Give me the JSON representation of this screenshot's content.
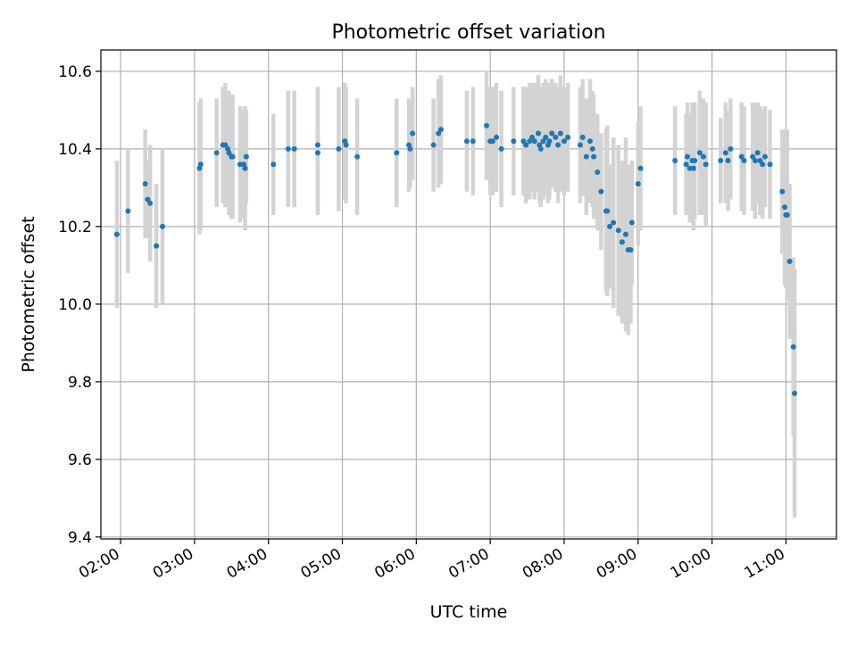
{
  "chart_data": {
    "type": "scatter",
    "title": "Photometric offset variation",
    "xlabel": "UTC time",
    "ylabel": "Photometric offset",
    "xlim": [
      "01:44",
      "11:41"
    ],
    "ylim": [
      9.395,
      10.655
    ],
    "grid": true,
    "x_ticks": [
      "02:00",
      "03:00",
      "04:00",
      "05:00",
      "06:00",
      "07:00",
      "08:00",
      "09:00",
      "10:00",
      "11:00"
    ],
    "y_ticks": [
      9.4,
      9.6,
      9.8,
      10.0,
      10.2,
      10.4,
      10.6
    ],
    "y_tick_labels": [
      "9.4",
      "9.6",
      "9.8",
      "10.0",
      "10.2",
      "10.4",
      "10.6"
    ],
    "colors": {
      "point": "#1f77b4",
      "errorbar": "#d3d3d3",
      "grid": "#b0b0b0"
    },
    "series": [
      {
        "x": [
          "01:57",
          "02:06",
          "02:20",
          "02:22",
          "02:24",
          "02:29",
          "02:34",
          "03:04",
          "03:05",
          "03:18",
          "03:23",
          "03:25",
          "03:27",
          "03:28",
          "03:30",
          "03:31",
          "03:37",
          "03:40",
          "03:41",
          "03:42",
          "04:04",
          "04:16",
          "04:21",
          "04:40",
          "04:40",
          "04:57",
          "05:02",
          "05:03",
          "05:12",
          "05:44",
          "05:54",
          "05:55",
          "05:57",
          "06:14",
          "06:18",
          "06:20",
          "06:41",
          "06:46",
          "06:57",
          "07:00",
          "07:02",
          "07:05",
          "07:09",
          "07:19",
          "07:27",
          "07:29",
          "07:32",
          "07:34",
          "07:36",
          "07:39",
          "07:40",
          "07:41",
          "07:43",
          "07:45",
          "07:47",
          "07:48",
          "07:50",
          "07:53",
          "07:55",
          "07:57",
          "08:00",
          "08:03",
          "08:13",
          "08:15",
          "08:18",
          "08:21",
          "08:23",
          "08:24",
          "08:27",
          "08:30",
          "08:34",
          "08:35",
          "08:37",
          "08:40",
          "08:44",
          "08:47",
          "08:50",
          "08:52",
          "08:54",
          "08:55",
          "09:00",
          "09:02",
          "09:30",
          "09:39",
          "09:40",
          "09:42",
          "09:44",
          "09:45",
          "09:46",
          "09:50",
          "09:53",
          "09:55",
          "10:07",
          "10:11",
          "10:13",
          "10:15",
          "10:24",
          "10:26",
          "10:33",
          "10:35",
          "10:37",
          "10:39",
          "10:41",
          "10:43",
          "10:47",
          "10:57",
          "10:59",
          "11:00",
          "11:01",
          "11:03",
          "11:06",
          "11:07"
        ],
        "y": [
          10.18,
          10.24,
          10.31,
          10.27,
          10.26,
          10.15,
          10.2,
          10.35,
          10.36,
          10.39,
          10.41,
          10.41,
          10.4,
          10.39,
          10.38,
          10.38,
          10.36,
          10.36,
          10.35,
          10.38,
          10.36,
          10.4,
          10.4,
          10.41,
          10.39,
          10.4,
          10.42,
          10.41,
          10.38,
          10.39,
          10.41,
          10.4,
          10.44,
          10.41,
          10.44,
          10.45,
          10.42,
          10.42,
          10.46,
          10.42,
          10.42,
          10.43,
          10.4,
          10.42,
          10.42,
          10.41,
          10.42,
          10.43,
          10.42,
          10.44,
          10.41,
          10.4,
          10.42,
          10.43,
          10.41,
          10.42,
          10.44,
          10.43,
          10.41,
          10.44,
          10.42,
          10.43,
          10.41,
          10.43,
          10.38,
          10.42,
          10.4,
          10.38,
          10.34,
          10.29,
          10.24,
          10.24,
          10.2,
          10.21,
          10.19,
          10.16,
          10.18,
          10.14,
          10.14,
          10.21,
          10.31,
          10.35,
          10.37,
          10.36,
          10.38,
          10.35,
          10.37,
          10.35,
          10.37,
          10.39,
          10.38,
          10.36,
          10.37,
          10.39,
          10.37,
          10.4,
          10.38,
          10.37,
          10.38,
          10.37,
          10.39,
          10.37,
          10.36,
          10.38,
          10.36,
          10.29,
          10.25,
          10.23,
          10.23,
          10.11,
          9.89,
          9.77
        ],
        "err": [
          0.19,
          0.16,
          0.14,
          0.1,
          0.15,
          0.16,
          0.2,
          0.17,
          0.17,
          0.14,
          0.15,
          0.16,
          0.14,
          0.16,
          0.16,
          0.16,
          0.15,
          0.14,
          0.16,
          0.12,
          0.13,
          0.15,
          0.15,
          0.15,
          0.16,
          0.16,
          0.15,
          0.15,
          0.15,
          0.14,
          0.12,
          0.1,
          0.12,
          0.12,
          0.14,
          0.14,
          0.13,
          0.14,
          0.14,
          0.14,
          0.14,
          0.14,
          0.15,
          0.14,
          0.14,
          0.15,
          0.15,
          0.14,
          0.15,
          0.15,
          0.15,
          0.15,
          0.15,
          0.15,
          0.15,
          0.15,
          0.14,
          0.14,
          0.15,
          0.15,
          0.14,
          0.14,
          0.15,
          0.15,
          0.15,
          0.16,
          0.15,
          0.16,
          0.15,
          0.15,
          0.21,
          0.22,
          0.16,
          0.22,
          0.22,
          0.21,
          0.25,
          0.22,
          0.19,
          0.16,
          0.16,
          0.16,
          0.14,
          0.13,
          0.14,
          0.14,
          0.15,
          0.16,
          0.15,
          0.16,
          0.15,
          0.16,
          0.11,
          0.13,
          0.13,
          0.13,
          0.14,
          0.14,
          0.14,
          0.15,
          0.13,
          0.14,
          0.14,
          0.13,
          0.14,
          0.16,
          0.2,
          0.19,
          0.22,
          0.2,
          0.23,
          0.32
        ]
      }
    ]
  }
}
